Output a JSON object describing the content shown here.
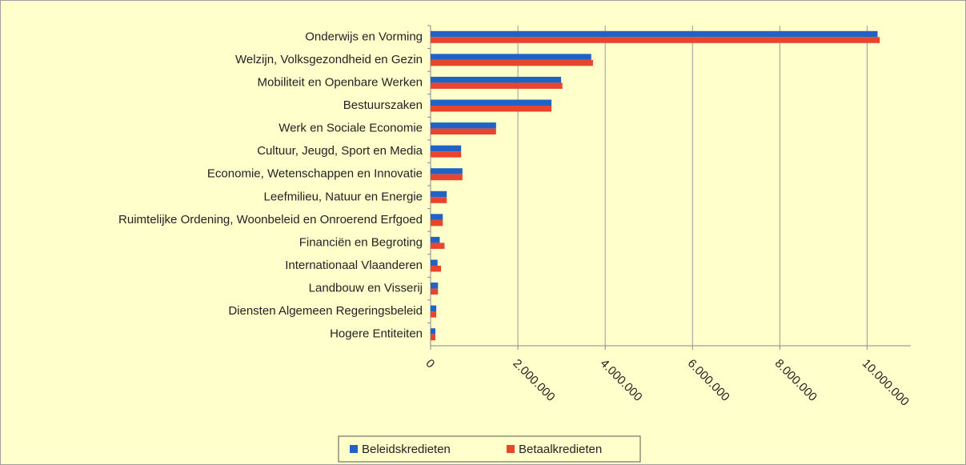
{
  "chart_data": {
    "type": "hbar",
    "categories": [
      "Onderwijs en Vorming",
      "Welzijn, Volksgezondheid en Gezin",
      "Mobiliteit en Openbare Werken",
      "Bestuurszaken",
      "Werk en Sociale Economie",
      "Cultuur, Jeugd, Sport en Media",
      "Economie, Wetenschappen en Innovatie",
      "Leefmilieu, Natuur en Energie",
      "Ruimtelijke Ordening, Woonbeleid en Onroerend Erfgoed",
      "Financiën en Begroting",
      "Internationaal Vlaanderen",
      "Landbouw en Visserij",
      "Diensten Algemeen Regeringsbeleid",
      "Hogere Entiteiten"
    ],
    "series": [
      {
        "name": "Beleidskredieten",
        "color": "#1f63c6",
        "values": [
          10240000,
          3680000,
          2990000,
          2770000,
          1500000,
          700000,
          730000,
          370000,
          280000,
          210000,
          160000,
          170000,
          130000,
          110000
        ]
      },
      {
        "name": "Betaalkredieten",
        "color": "#e8452c",
        "values": [
          10290000,
          3720000,
          3020000,
          2770000,
          1500000,
          700000,
          730000,
          370000,
          280000,
          320000,
          240000,
          170000,
          130000,
          110000
        ]
      }
    ],
    "xlim": [
      0,
      11000000
    ],
    "xticks": [
      0,
      {
        "value": 2000000,
        "label": "2.000.000"
      },
      {
        "value": 4000000,
        "label": "4.000.000"
      },
      {
        "value": 6000000,
        "label": "6.000.000"
      },
      {
        "value": 8000000,
        "label": "8.000.000"
      },
      {
        "value": 10000000,
        "label": "10.000.000"
      }
    ],
    "grid": true,
    "legend": "bottom"
  }
}
